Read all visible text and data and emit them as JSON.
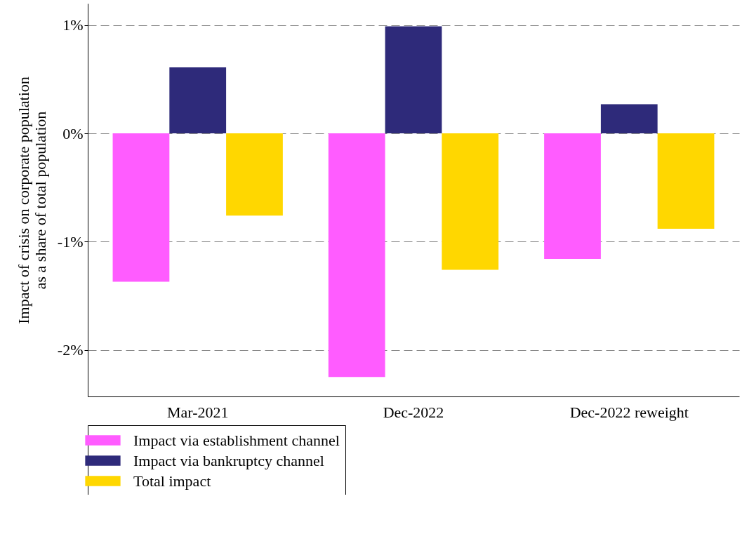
{
  "chart_data": {
    "type": "bar",
    "ylabel": "Impact of crisis on corporate population\nas a share of total population",
    "categories": [
      "Mar-2021",
      "Dec-2022",
      "Dec-2022 reweight"
    ],
    "series": [
      {
        "name": "Impact via establishment channel",
        "color": "#ff5cff",
        "values": [
          -1.37,
          -2.25,
          -1.16
        ]
      },
      {
        "name": "Impact via bankruptcy channel",
        "color": "#2e2a7a",
        "values": [
          0.61,
          0.99,
          0.27
        ]
      },
      {
        "name": "Total impact",
        "color": "#ffd700",
        "values": [
          -0.76,
          -1.26,
          -0.88
        ]
      }
    ],
    "ylim": [
      -2.43,
      1.2
    ],
    "yticks": [
      {
        "value": -2,
        "label": "-2%"
      },
      {
        "value": -1,
        "label": "-1%"
      },
      {
        "value": 0,
        "label": "0%"
      },
      {
        "value": 1,
        "label": "1%"
      }
    ],
    "grid": "y",
    "legend": "bottom"
  }
}
